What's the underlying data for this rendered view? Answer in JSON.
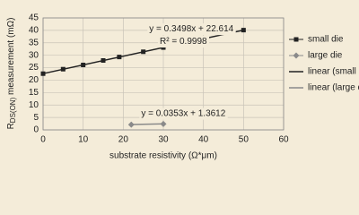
{
  "chart_data": {
    "type": "scatter",
    "x_label": "substrate resistivity (Ω*μm)",
    "y_label": {
      "main": "R",
      "sub": "DS(ON)",
      "rest": " measurement (mΩ)"
    },
    "xlim": [
      0,
      60
    ],
    "xticks": [
      0,
      10,
      20,
      30,
      40,
      50,
      60
    ],
    "ylim": [
      0,
      45
    ],
    "yticks": [
      0,
      5,
      10,
      15,
      20,
      25,
      30,
      35,
      40,
      45
    ],
    "grid": true,
    "series": [
      {
        "name": "small die",
        "mode": "marker",
        "marker": "square",
        "color": "#222222",
        "x": [
          0,
          5,
          10,
          15,
          19,
          25,
          30,
          35,
          50
        ],
        "values": [
          22.6,
          24.4,
          26.1,
          27.9,
          29.3,
          31.4,
          33.1,
          34.9,
          40.1
        ]
      },
      {
        "name": "large die",
        "mode": "marker",
        "marker": "diamond",
        "color": "#8a8a8a",
        "x": [
          22,
          30
        ],
        "values": [
          2.1,
          2.4
        ]
      },
      {
        "name": "linear (small die)",
        "mode": "line",
        "color": "#222222",
        "x": [
          0,
          50
        ],
        "values": [
          22.614,
          40.104
        ]
      },
      {
        "name": "linear (large die)",
        "mode": "line",
        "color": "#8a8a8a",
        "x": [
          22,
          30
        ],
        "values": [
          2.14,
          2.42
        ]
      }
    ],
    "annotations": [
      {
        "text": "y = 0.3498x + 22.614",
        "x": 37,
        "y": 40.5
      },
      {
        "text": "R² = 0.9998",
        "x": 35,
        "y": 35.5
      },
      {
        "text": "y = 0.0353x + 1.3612",
        "x": 35,
        "y": 6.5
      }
    ]
  }
}
